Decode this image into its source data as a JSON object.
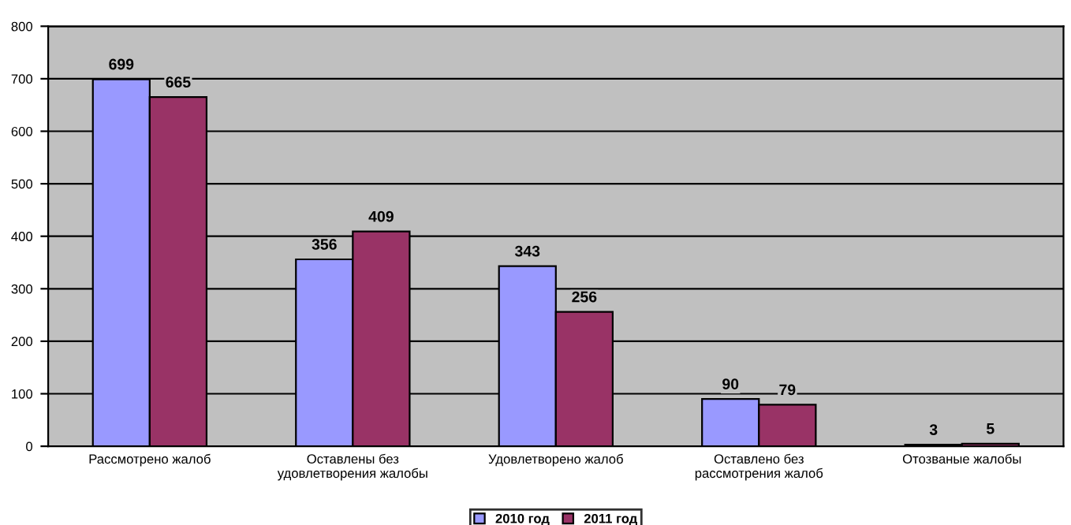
{
  "chart_data": {
    "type": "bar",
    "categories": [
      "Рассмотрено жалоб",
      "Оставлены без\nудовлетворения жалобы",
      "Удовлетворено жалоб",
      "Оставлено без\nрассмотрения жалоб",
      "Отозваные жалобы"
    ],
    "series": [
      {
        "name": "2010 год",
        "color": "#9999ff",
        "values": [
          699,
          356,
          343,
          90,
          3
        ]
      },
      {
        "name": "2011 год",
        "color": "#993366",
        "values": [
          665,
          409,
          256,
          79,
          5
        ]
      }
    ],
    "ylim": [
      0,
      800
    ],
    "yticks": [
      0,
      100,
      200,
      300,
      400,
      500,
      600,
      700,
      800
    ],
    "grid": "y",
    "legend": "bottom",
    "data_labels": true
  }
}
